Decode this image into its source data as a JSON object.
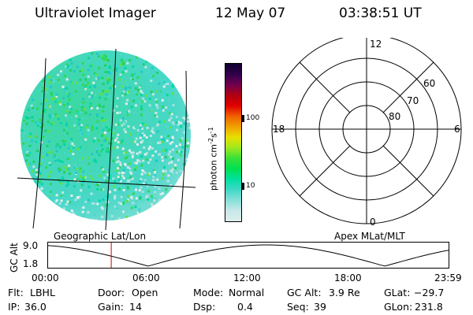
{
  "header": {
    "instrument": "Ultraviolet Imager",
    "date": "12 May 07",
    "time": "03:38:51 UT"
  },
  "colorbar": {
    "unit_label": "photon cm",
    "unit_exp1": "-2",
    "unit_s": "s",
    "unit_exp2": "-1",
    "ticks": [
      "100",
      "10"
    ],
    "colors": [
      "#ddeeee",
      "#c8e8e8",
      "#88e0d8",
      "#40d8c8",
      "#00e0a0",
      "#00e050",
      "#38e038",
      "#a0e820",
      "#e8e000",
      "#f0a000",
      "#f06000",
      "#e00000",
      "#b00010",
      "#700050",
      "#30004a",
      "#100030"
    ]
  },
  "left_panel": {
    "label": "Geographic Lat/Lon"
  },
  "polar": {
    "top_label": "12",
    "left_label": "18",
    "right_label": "6",
    "bottom_label": "0",
    "ring_labels": [
      "60",
      "70",
      "80"
    ]
  },
  "right_panel": {
    "label": "Apex MLat/MLT"
  },
  "timeline": {
    "ylabel": "GC Alt",
    "yticks": [
      "9.0",
      "1.8"
    ],
    "xticks": [
      "00:00",
      "06:00",
      "12:00",
      "18:00",
      "23:59"
    ],
    "current_time_fraction": 0.159
  },
  "status": {
    "flt_label": "Flt:",
    "flt_value": "LBHL",
    "ip_label": "IP:",
    "ip_value": "36.0",
    "door_label": "Door:",
    "door_value": "Open",
    "gain_label": "Gain:",
    "gain_value": "14",
    "mode_label": "Mode:",
    "mode_value": "Normal",
    "dsp_label": "Dsp:",
    "dsp_value": "0.4",
    "gcalt_label": "GC Alt:",
    "gcalt_value": "3.9 Re",
    "seq_label": "Seq:",
    "seq_value": "39",
    "glat_label": "GLat:",
    "glat_value": "−29.7",
    "glon_label": "GLon:",
    "glon_value": "231.8"
  }
}
